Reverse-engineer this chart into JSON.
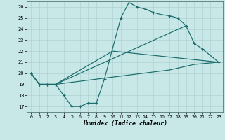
{
  "bg_color": "#c8e8e8",
  "grid_color": "#aacccc",
  "line_color": "#1a6b6b",
  "xlabel": "Humidex (Indice chaleur)",
  "xlim": [
    -0.5,
    23.5
  ],
  "ylim": [
    16.5,
    26.5
  ],
  "xticks": [
    0,
    1,
    2,
    3,
    4,
    5,
    6,
    7,
    8,
    9,
    10,
    11,
    12,
    13,
    14,
    15,
    16,
    17,
    18,
    19,
    20,
    21,
    22,
    23
  ],
  "yticks": [
    17,
    18,
    19,
    20,
    21,
    22,
    23,
    24,
    25,
    26
  ],
  "series": [
    {
      "x": [
        0,
        1,
        2,
        3,
        4,
        5,
        6,
        7,
        8,
        9,
        11,
        12,
        13,
        14,
        15,
        16,
        17,
        18,
        19
      ],
      "y": [
        20,
        19,
        19,
        19,
        18,
        17,
        17,
        17.3,
        17.3,
        19.5,
        25,
        26.4,
        26.0,
        25.8,
        25.5,
        25.3,
        25.2,
        25.0,
        24.3
      ],
      "markers": true
    },
    {
      "x": [
        0,
        1,
        2,
        3,
        19,
        20,
        21,
        23
      ],
      "y": [
        20,
        19,
        19,
        19,
        24.3,
        22.7,
        22.2,
        21.0
      ],
      "markers": true
    },
    {
      "x": [
        0,
        1,
        3,
        10,
        23
      ],
      "y": [
        20,
        19,
        19,
        22.0,
        21.0
      ],
      "markers": false
    },
    {
      "x": [
        0,
        1,
        3,
        17,
        20,
        23
      ],
      "y": [
        20,
        19,
        19,
        20.3,
        20.8,
        21.0
      ],
      "markers": false
    }
  ]
}
